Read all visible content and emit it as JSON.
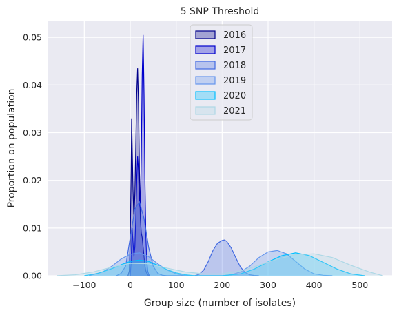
{
  "chart_data": {
    "type": "area",
    "title": "5 SNP Threshold",
    "xlabel": "Group size (number of isolates)",
    "ylabel": "Proportion on population",
    "xlim": [
      -180,
      570
    ],
    "ylim": [
      0,
      0.0535
    ],
    "xticks": [
      -100,
      0,
      100,
      200,
      300,
      400,
      500
    ],
    "xtick_labels": [
      "−100",
      "0",
      "100",
      "200",
      "300",
      "400",
      "500"
    ],
    "yticks": [
      0,
      0.01,
      0.02,
      0.03,
      0.04,
      0.05
    ],
    "ytick_labels": [
      "0.00",
      "0.01",
      "0.02",
      "0.03",
      "0.04",
      "0.05"
    ],
    "grid": true,
    "legend_position": "top-center",
    "series": [
      {
        "name": "2016",
        "fill": "#00008b",
        "stroke": "#00008b",
        "x": [
          -5,
          -2,
          0,
          2,
          3,
          4,
          6,
          8,
          10,
          12,
          14,
          16,
          18,
          20,
          22,
          24,
          26,
          28,
          30,
          32,
          34,
          36,
          38,
          40
        ],
        "y": [
          0,
          0.001,
          0.008,
          0.022,
          0.033,
          0.028,
          0.018,
          0.012,
          0.017,
          0.027,
          0.038,
          0.0435,
          0.036,
          0.022,
          0.012,
          0.009,
          0.008,
          0.006,
          0.004,
          0.002,
          0.001,
          0.0005,
          0.0002,
          0
        ]
      },
      {
        "name": "2017",
        "fill": "#0000cd",
        "stroke": "#0000cd",
        "x": [
          0,
          2,
          4,
          6,
          8,
          10,
          12,
          14,
          16,
          18,
          20,
          22,
          24,
          26,
          28,
          30,
          32,
          34,
          36,
          38,
          40,
          42
        ],
        "y": [
          0,
          0.003,
          0.01,
          0.007,
          0.004,
          0.006,
          0.012,
          0.02,
          0.025,
          0.022,
          0.015,
          0.014,
          0.025,
          0.042,
          0.0505,
          0.038,
          0.02,
          0.008,
          0.003,
          0.001,
          0.0003,
          0
        ]
      },
      {
        "name": "2018",
        "fill": "#4169e1",
        "stroke": "#4169e1",
        "x": [
          -30,
          -20,
          -10,
          0,
          10,
          20,
          30,
          40,
          50,
          60,
          70,
          80,
          100,
          120,
          140,
          150,
          160,
          170,
          180,
          190,
          200,
          205,
          210,
          220,
          230,
          240,
          250,
          260,
          270,
          280
        ],
        "y": [
          0,
          0.0005,
          0.002,
          0.008,
          0.014,
          0.0155,
          0.012,
          0.006,
          0.002,
          0.0005,
          0.0001,
          0,
          0,
          0,
          0,
          0.0003,
          0.0012,
          0.003,
          0.0053,
          0.0068,
          0.0074,
          0.0075,
          0.0072,
          0.0058,
          0.0037,
          0.0018,
          0.0007,
          0.0002,
          5e-05,
          0
        ]
      },
      {
        "name": "2019",
        "fill": "#6495ed",
        "stroke": "#6495ed",
        "x": [
          -90,
          -60,
          -40,
          -20,
          0,
          20,
          40,
          60,
          80,
          100,
          120,
          160,
          200,
          220,
          240,
          260,
          280,
          300,
          320,
          340,
          360,
          380,
          400,
          420,
          440
        ],
        "y": [
          0,
          0.0008,
          0.002,
          0.0035,
          0.0045,
          0.0048,
          0.004,
          0.0025,
          0.0012,
          0.0004,
          0,
          0,
          0,
          0.0002,
          0.0008,
          0.002,
          0.0038,
          0.005,
          0.0053,
          0.0046,
          0.003,
          0.0014,
          0.0004,
          0.0001,
          0
        ]
      },
      {
        "name": "2020",
        "fill": "#00bfff",
        "stroke": "#00bfff",
        "x": [
          -100,
          -70,
          -40,
          -20,
          0,
          20,
          40,
          60,
          80,
          100,
          120,
          140,
          200,
          240,
          270,
          300,
          330,
          360,
          390,
          420,
          450,
          480,
          510
        ],
        "y": [
          0,
          0.0005,
          0.0015,
          0.0023,
          0.003,
          0.0033,
          0.003,
          0.0022,
          0.0013,
          0.0006,
          0.0002,
          0,
          0,
          0.0004,
          0.0014,
          0.0029,
          0.0042,
          0.0048,
          0.0042,
          0.0028,
          0.0014,
          0.0004,
          0
        ]
      },
      {
        "name": "2021",
        "fill": "#add8e6",
        "stroke": "#add8e6",
        "x": [
          -160,
          -120,
          -80,
          -40,
          0,
          40,
          80,
          120,
          160,
          200,
          240,
          280,
          320,
          360,
          400,
          440,
          480,
          520,
          550
        ],
        "y": [
          0,
          0.0002,
          0.0008,
          0.0018,
          0.0026,
          0.0025,
          0.0016,
          0.0008,
          0.0004,
          0.0004,
          0.001,
          0.0022,
          0.0035,
          0.0044,
          0.0046,
          0.0038,
          0.0022,
          0.0008,
          0
        ]
      }
    ]
  }
}
